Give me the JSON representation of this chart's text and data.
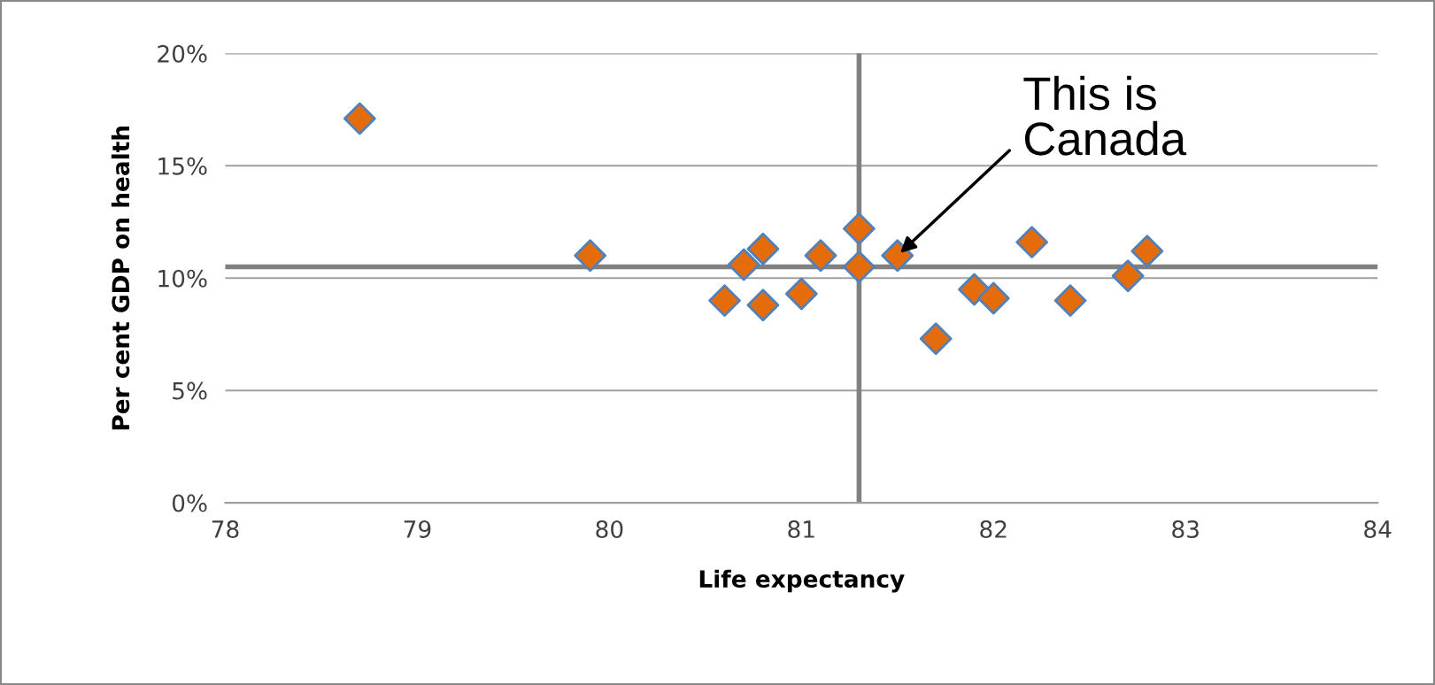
{
  "chart_data": {
    "type": "scatter",
    "xlabel": "Life expectancy",
    "ylabel": "Per cent GDP on health",
    "series": [
      {
        "color": "#e46c0a",
        "x": [
          78.7,
          79.9,
          80.6,
          80.7,
          80.8,
          80.8,
          81.0,
          81.1,
          81.3,
          81.3,
          81.5,
          81.7,
          81.9,
          82.0,
          82.2,
          82.4,
          82.7,
          82.8
        ],
        "values": [
          17.1,
          11.0,
          9.0,
          10.6,
          11.3,
          8.8,
          9.3,
          11.0,
          12.2,
          10.5,
          11.0,
          7.3,
          9.5,
          9.1,
          11.6,
          9.0,
          10.1,
          11.2
        ]
      }
    ],
    "xlim": [
      78,
      84
    ],
    "xticks": [
      78,
      79,
      80,
      81,
      82,
      83,
      84
    ],
    "ylim": [
      0,
      20
    ],
    "yticks": [
      {
        "value": 0,
        "label": "0%"
      },
      {
        "value": 5,
        "label": "5%"
      },
      {
        "value": 10,
        "label": "10%"
      },
      {
        "value": 15,
        "label": "15%"
      },
      {
        "value": 20,
        "label": "20%"
      }
    ],
    "grid": "y",
    "marker": "diamond",
    "ref_lines": [
      {
        "axis": "x",
        "value": 81.3,
        "color": "#808080"
      },
      {
        "axis": "y",
        "value": 10.5,
        "color": "#808080"
      }
    ],
    "annotations": [
      {
        "text": "This is\nCanada",
        "x": 81.5,
        "y": 11.0
      }
    ]
  }
}
